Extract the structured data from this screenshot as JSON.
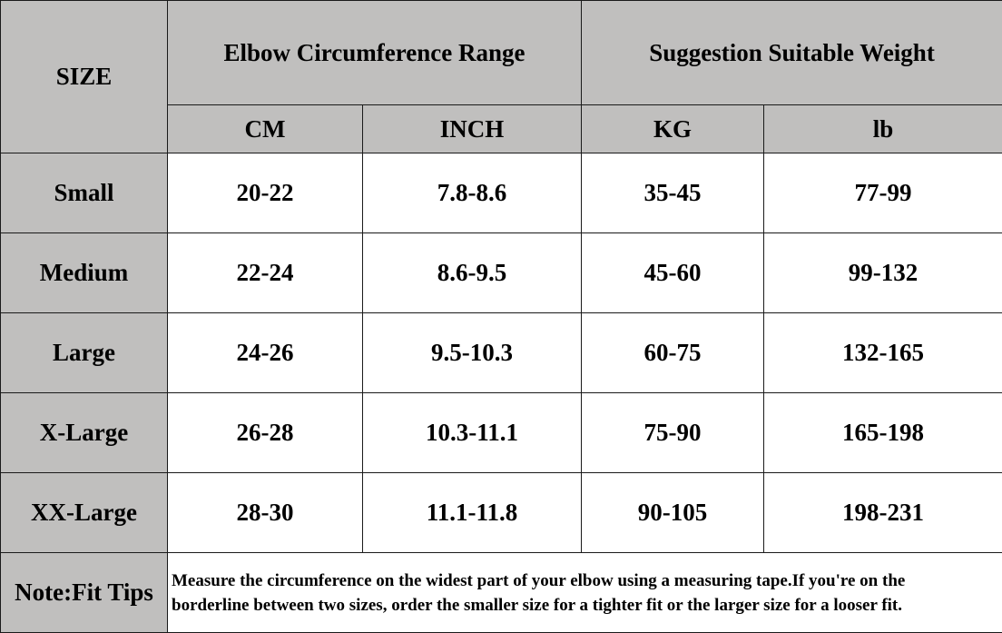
{
  "header": {
    "size_label": "SIZE",
    "group_elbow": "Elbow Circumference Range",
    "group_weight": "Suggestion Suitable Weight",
    "units": [
      "CM",
      "INCH",
      "KG",
      "lb"
    ]
  },
  "rows": [
    {
      "size": "Small",
      "cm": "20-22",
      "inch": "7.8-8.6",
      "kg": "35-45",
      "lb": "77-99"
    },
    {
      "size": "Medium",
      "cm": "22-24",
      "inch": "8.6-9.5",
      "kg": "45-60",
      "lb": "99-132"
    },
    {
      "size": "Large",
      "cm": "24-26",
      "inch": "9.5-10.3",
      "kg": "60-75",
      "lb": "132-165"
    },
    {
      "size": "X-Large",
      "cm": "26-28",
      "inch": "10.3-11.1",
      "kg": "75-90",
      "lb": "165-198"
    },
    {
      "size": "XX-Large",
      "cm": "28-30",
      "inch": "11.1-11.8",
      "kg": "90-105",
      "lb": "198-231"
    }
  ],
  "note": {
    "label": "Note:Fit Tips",
    "line1": "Measure the circumference on the widest part of your elbow using a measuring tape.If you're on the",
    "line2": "borderline between two sizes, order the smaller size for a tighter fit or the larger size for a looser fit."
  },
  "colors": {
    "header_gray": "#c0bfbe",
    "border": "#1a1a1a"
  }
}
